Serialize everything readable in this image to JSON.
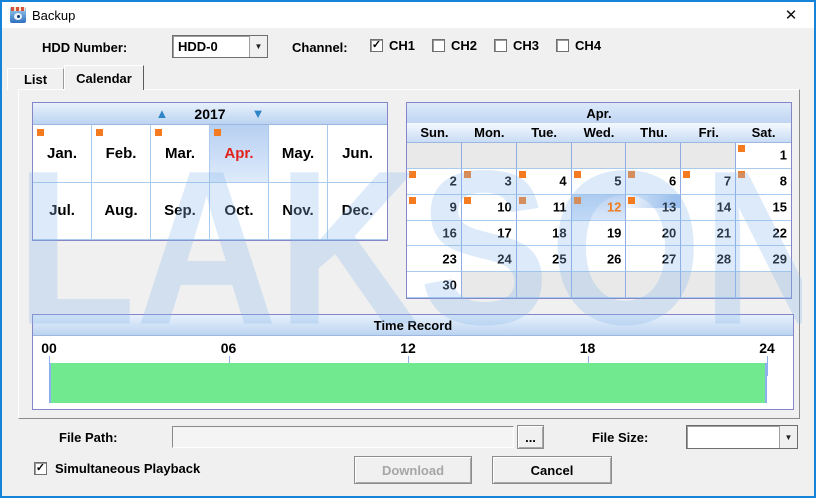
{
  "window": {
    "title": "Backup",
    "close_glyph": "✕",
    "app_icon": "camera-eye-icon"
  },
  "colors": {
    "window_border": "#1584D8",
    "marker_orange": "#F47B20",
    "selected_month_red": "#E3211B",
    "selected_day_orange": "#F07C1E",
    "record_green": "#71E98E",
    "header_blue_gradient": "#BCD4F1"
  },
  "controls": {
    "hdd_label": "HDD Number:",
    "hdd_value": "HDD-0",
    "channel_label": "Channel:",
    "channels": [
      {
        "label": "CH1",
        "checked": true
      },
      {
        "label": "CH2",
        "checked": false
      },
      {
        "label": "CH3",
        "checked": false
      },
      {
        "label": "CH4",
        "checked": false
      }
    ]
  },
  "tabs": [
    {
      "label": "List",
      "active": false
    },
    {
      "label": "Calendar",
      "active": true
    }
  ],
  "month_calendar": {
    "year": "2017",
    "up_arrow": "▲",
    "down_arrow": "▼",
    "months": [
      {
        "label": "Jan.",
        "marker": true,
        "selected": false
      },
      {
        "label": "Feb.",
        "marker": true,
        "selected": false
      },
      {
        "label": "Mar.",
        "marker": true,
        "selected": false
      },
      {
        "label": "Apr.",
        "marker": true,
        "selected": true
      },
      {
        "label": "May.",
        "marker": false,
        "selected": false
      },
      {
        "label": "Jun.",
        "marker": false,
        "selected": false
      },
      {
        "label": "Jul.",
        "marker": false,
        "selected": false
      },
      {
        "label": "Aug.",
        "marker": false,
        "selected": false
      },
      {
        "label": "Sep.",
        "marker": false,
        "selected": false
      },
      {
        "label": "Oct.",
        "marker": false,
        "selected": false
      },
      {
        "label": "Nov.",
        "marker": false,
        "selected": false
      },
      {
        "label": "Dec.",
        "marker": false,
        "selected": false
      }
    ]
  },
  "day_calendar": {
    "title": "Apr.",
    "day_headers": [
      "Sun.",
      "Mon.",
      "Tue.",
      "Wed.",
      "Thu.",
      "Fri.",
      "Sat."
    ],
    "cells": [
      {
        "day": "",
        "empty": true
      },
      {
        "day": "",
        "empty": true
      },
      {
        "day": "",
        "empty": true
      },
      {
        "day": "",
        "empty": true
      },
      {
        "day": "",
        "empty": true
      },
      {
        "day": "",
        "empty": true
      },
      {
        "day": "1",
        "marker": true
      },
      {
        "day": "2",
        "marker": true
      },
      {
        "day": "3",
        "marker": true
      },
      {
        "day": "4",
        "marker": true
      },
      {
        "day": "5",
        "marker": true
      },
      {
        "day": "6",
        "marker": true
      },
      {
        "day": "7",
        "marker": true
      },
      {
        "day": "8",
        "marker": true
      },
      {
        "day": "9",
        "marker": true
      },
      {
        "day": "10",
        "marker": true
      },
      {
        "day": "11",
        "marker": true
      },
      {
        "day": "12",
        "marker": true,
        "selected": true
      },
      {
        "day": "13",
        "marker": true,
        "today": true
      },
      {
        "day": "14"
      },
      {
        "day": "15"
      },
      {
        "day": "16"
      },
      {
        "day": "17"
      },
      {
        "day": "18"
      },
      {
        "day": "19"
      },
      {
        "day": "20"
      },
      {
        "day": "21"
      },
      {
        "day": "22"
      },
      {
        "day": "23"
      },
      {
        "day": "24"
      },
      {
        "day": "25"
      },
      {
        "day": "26"
      },
      {
        "day": "27"
      },
      {
        "day": "28"
      },
      {
        "day": "29"
      },
      {
        "day": "30"
      },
      {
        "day": "",
        "empty": true
      },
      {
        "day": "",
        "empty": true
      },
      {
        "day": "",
        "empty": true
      },
      {
        "day": "",
        "empty": true
      },
      {
        "day": "",
        "empty": true
      },
      {
        "day": "",
        "empty": true
      }
    ]
  },
  "time_record": {
    "title": "Time Record",
    "hour_labels": [
      "00",
      "06",
      "12",
      "18",
      "24"
    ],
    "hours_start": 0,
    "hours_end": 24,
    "recorded_range": [
      0,
      24
    ]
  },
  "footer": {
    "file_path_label": "File Path:",
    "file_path_value": "",
    "file_path_placeholder": "",
    "browse_label": "...",
    "file_size_label": "File Size:",
    "file_size_value": "",
    "simultaneous_label": "Simultaneous Playback",
    "simultaneous_checked": true,
    "download_label": "Download",
    "download_enabled": false,
    "cancel_label": "Cancel"
  },
  "watermark": "LAKSON"
}
